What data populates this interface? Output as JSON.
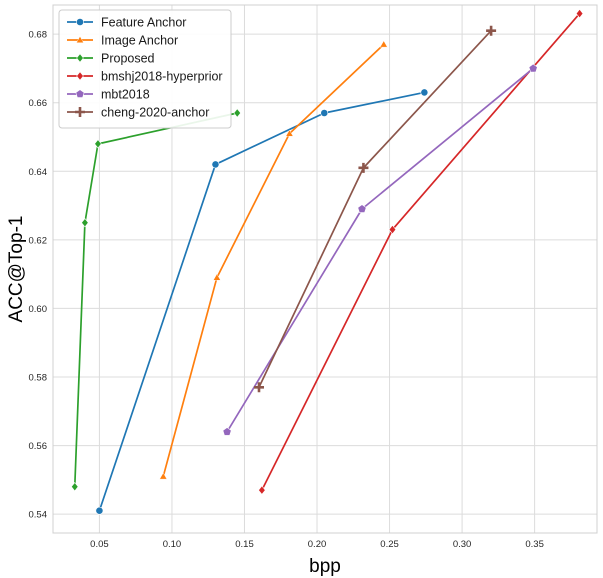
{
  "chart_data": {
    "type": "line",
    "xlabel": "bpp",
    "ylabel": "ACC@Top-1",
    "xlim": [
      0.018,
      0.393
    ],
    "ylim": [
      0.5345,
      0.6885
    ],
    "x_ticks": [
      0.05,
      0.1,
      0.15,
      0.2,
      0.25,
      0.3,
      0.35
    ],
    "x_tick_labels": [
      "0.05",
      "0.10",
      "0.15",
      "0.20",
      "0.25",
      "0.30",
      "0.35"
    ],
    "y_ticks": [
      0.54,
      0.56,
      0.58,
      0.6,
      0.62,
      0.64,
      0.66,
      0.68
    ],
    "y_tick_labels": [
      "0.54",
      "0.56",
      "0.58",
      "0.60",
      "0.62",
      "0.64",
      "0.66",
      "0.68"
    ],
    "grid": true,
    "legend_position": "top-left",
    "series": [
      {
        "name": "Feature Anchor",
        "color": "#1f77b4",
        "marker": "circle",
        "x": [
          0.05,
          0.13,
          0.205,
          0.274
        ],
        "y": [
          0.541,
          0.642,
          0.657,
          0.663
        ]
      },
      {
        "name": "Image Anchor",
        "color": "#ff7f0e",
        "marker": "triangle",
        "x": [
          0.094,
          0.131,
          0.181,
          0.246
        ],
        "y": [
          0.551,
          0.609,
          0.651,
          0.677
        ]
      },
      {
        "name": "Proposed",
        "color": "#2ca02c",
        "marker": "diamond",
        "x": [
          0.033,
          0.04,
          0.049,
          0.145
        ],
        "y": [
          0.548,
          0.625,
          0.648,
          0.657
        ]
      },
      {
        "name": "bmshj2018-hyperprior",
        "color": "#d62728",
        "marker": "diamond",
        "x": [
          0.162,
          0.252,
          0.381
        ],
        "y": [
          0.547,
          0.623,
          0.686
        ]
      },
      {
        "name": "mbt2018",
        "color": "#9467bd",
        "marker": "pentagon",
        "x": [
          0.138,
          0.231,
          0.349
        ],
        "y": [
          0.564,
          0.629,
          0.67
        ]
      },
      {
        "name": "cheng-2020-anchor",
        "color": "#8c564b",
        "marker": "plus",
        "x": [
          0.16,
          0.232,
          0.32
        ],
        "y": [
          0.577,
          0.641,
          0.681
        ]
      }
    ]
  }
}
